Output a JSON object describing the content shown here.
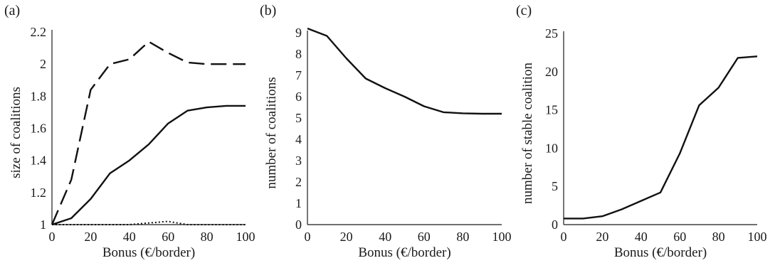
{
  "chart_data": [
    {
      "type": "line",
      "panel_label": "(a)",
      "xlabel": "Bonus (€/border)",
      "ylabel": "size of coalitions",
      "xlim": [
        0,
        100
      ],
      "ylim": [
        1,
        2.2
      ],
      "xticks": [
        0,
        20,
        40,
        60,
        80,
        100
      ],
      "yticks": [
        1,
        1.2,
        1.4,
        1.6,
        1.8,
        2,
        2.2
      ],
      "ytick_labels": [
        "1",
        "1.2",
        "1.4",
        "1.6",
        "1.8",
        "2",
        "2.2"
      ],
      "grid": false,
      "series": [
        {
          "style": "dashed",
          "x": [
            0,
            10,
            20,
            30,
            40,
            50,
            60,
            70,
            80,
            90,
            100
          ],
          "y": [
            1,
            1.28,
            1.84,
            2.0,
            2.03,
            2.14,
            2.07,
            2.01,
            2.0,
            2.0,
            2.0
          ]
        },
        {
          "style": "solid",
          "x": [
            0,
            10,
            20,
            30,
            40,
            50,
            60,
            70,
            80,
            90,
            100
          ],
          "y": [
            1,
            1.04,
            1.16,
            1.32,
            1.4,
            1.5,
            1.63,
            1.71,
            1.73,
            1.74,
            1.74
          ]
        },
        {
          "style": "dotted",
          "x": [
            0,
            10,
            20,
            30,
            40,
            50,
            60,
            70,
            80,
            90,
            100
          ],
          "y": [
            1,
            1,
            1,
            1,
            1,
            1.01,
            1.02,
            1,
            1,
            1,
            1
          ]
        }
      ]
    },
    {
      "type": "line",
      "panel_label": "(b)",
      "xlabel": "Bonus (€/border)",
      "ylabel": "number of coalitions",
      "xlim": [
        0,
        100
      ],
      "ylim": [
        0,
        9
      ],
      "xticks": [
        0,
        20,
        40,
        60,
        80,
        100
      ],
      "yticks": [
        0,
        1,
        2,
        3,
        4,
        5,
        6,
        7,
        8,
        9
      ],
      "ytick_labels": [
        "0",
        "1",
        "2",
        "3",
        "4",
        "5",
        "6",
        "7",
        "8",
        "9"
      ],
      "grid": false,
      "series": [
        {
          "style": "solid",
          "x": [
            0,
            10,
            20,
            30,
            40,
            50,
            60,
            70,
            80,
            90,
            100
          ],
          "y": [
            9.2,
            8.85,
            7.8,
            6.85,
            6.4,
            6.0,
            5.55,
            5.27,
            5.22,
            5.2,
            5.2
          ]
        }
      ]
    },
    {
      "type": "line",
      "panel_label": "(c)",
      "xlabel": "Bonus (€/border)",
      "ylabel": "number of stable coalition",
      "xlim": [
        0,
        100
      ],
      "ylim": [
        0,
        25
      ],
      "xticks": [
        0,
        20,
        40,
        60,
        80,
        100
      ],
      "yticks": [
        0,
        5,
        10,
        15,
        20,
        25
      ],
      "ytick_labels": [
        "0",
        "5",
        "10",
        "15",
        "20",
        "25"
      ],
      "grid": false,
      "series": [
        {
          "style": "solid",
          "x": [
            0,
            10,
            20,
            30,
            40,
            50,
            60,
            70,
            80,
            90,
            100
          ],
          "y": [
            0.8,
            0.8,
            1.1,
            2.0,
            3.1,
            4.2,
            9.3,
            15.6,
            17.9,
            21.8,
            22.0
          ]
        }
      ]
    }
  ]
}
